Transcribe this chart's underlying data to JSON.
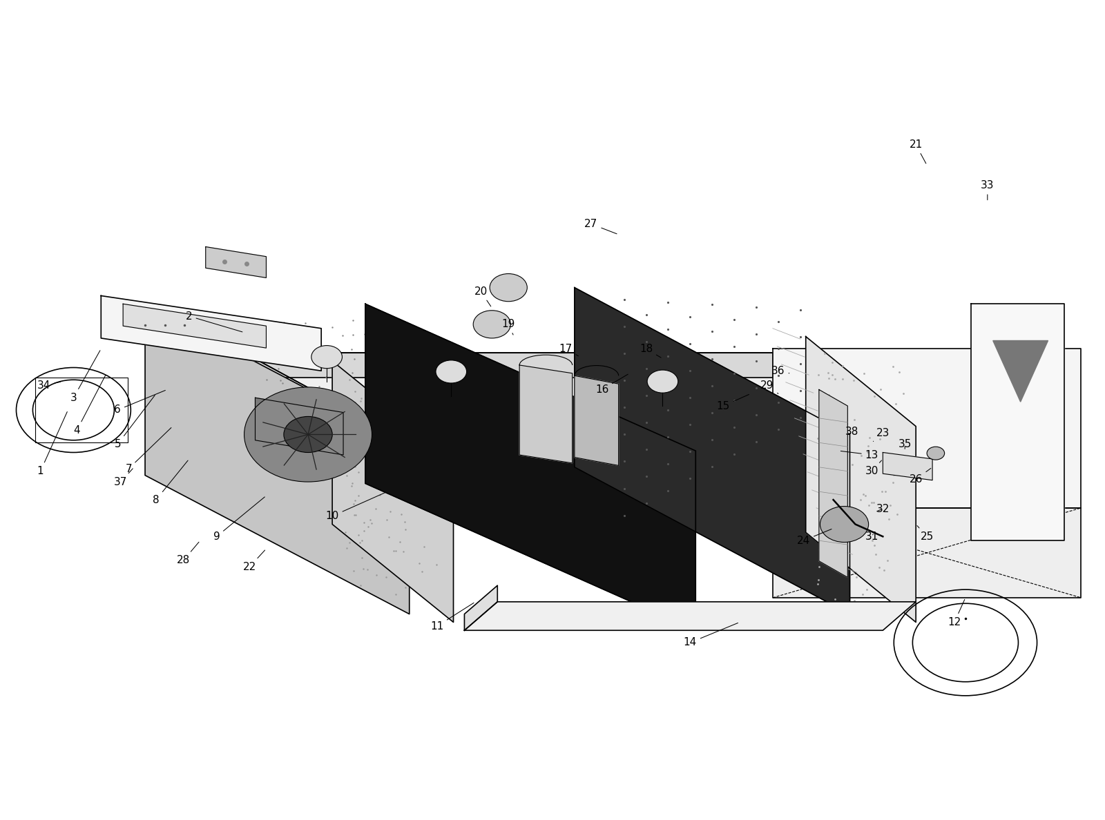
{
  "bg_color": "#ffffff",
  "line_color": "#000000",
  "text_color": "#000000",
  "figsize": [
    16.0,
    11.88
  ],
  "dpi": 100,
  "font_size": 11,
  "labels": {
    "1": [
      0.035,
      0.425,
      0.06,
      0.5
    ],
    "2": [
      0.17,
      0.615,
      0.22,
      0.595
    ],
    "3": [
      0.065,
      0.515,
      0.09,
      0.575
    ],
    "4": [
      0.068,
      0.475,
      0.095,
      0.545
    ],
    "5": [
      0.105,
      0.458,
      0.14,
      0.52
    ],
    "6": [
      0.105,
      0.5,
      0.15,
      0.525
    ],
    "7": [
      0.115,
      0.428,
      0.155,
      0.48
    ],
    "8": [
      0.14,
      0.39,
      0.17,
      0.44
    ],
    "9": [
      0.195,
      0.345,
      0.24,
      0.395
    ],
    "10": [
      0.3,
      0.37,
      0.35,
      0.4
    ],
    "11": [
      0.395,
      0.235,
      0.43,
      0.265
    ],
    "12": [
      0.865,
      0.24,
      0.875,
      0.27
    ],
    "13": [
      0.79,
      0.445,
      0.76,
      0.45
    ],
    "14": [
      0.625,
      0.215,
      0.67,
      0.24
    ],
    "15": [
      0.655,
      0.505,
      0.68,
      0.52
    ],
    "16": [
      0.545,
      0.525,
      0.57,
      0.545
    ],
    "17": [
      0.512,
      0.575,
      0.525,
      0.565
    ],
    "18": [
      0.585,
      0.575,
      0.6,
      0.563
    ],
    "19": [
      0.46,
      0.605,
      0.465,
      0.59
    ],
    "20": [
      0.435,
      0.645,
      0.445,
      0.625
    ],
    "21": [
      0.83,
      0.825,
      0.84,
      0.8
    ],
    "22": [
      0.225,
      0.308,
      0.24,
      0.33
    ],
    "23": [
      0.8,
      0.472,
      0.79,
      0.46
    ],
    "24": [
      0.728,
      0.34,
      0.755,
      0.355
    ],
    "25": [
      0.84,
      0.345,
      0.83,
      0.36
    ],
    "26": [
      0.83,
      0.415,
      0.845,
      0.43
    ],
    "27": [
      0.535,
      0.728,
      0.56,
      0.715
    ],
    "28": [
      0.165,
      0.316,
      0.18,
      0.34
    ],
    "29": [
      0.695,
      0.53,
      0.705,
      0.52
    ],
    "30": [
      0.79,
      0.425,
      0.8,
      0.44
    ],
    "31": [
      0.79,
      0.345,
      0.792,
      0.35
    ],
    "32": [
      0.8,
      0.379,
      0.793,
      0.375
    ],
    "33": [
      0.895,
      0.775,
      0.895,
      0.755
    ],
    "34": [
      0.038,
      0.53,
      0.055,
      0.535
    ],
    "35": [
      0.82,
      0.458,
      0.82,
      0.45
    ],
    "36": [
      0.705,
      0.548,
      0.715,
      0.545
    ],
    "37": [
      0.108,
      0.412,
      0.12,
      0.43
    ],
    "38": [
      0.772,
      0.473,
      0.768,
      0.47
    ]
  }
}
